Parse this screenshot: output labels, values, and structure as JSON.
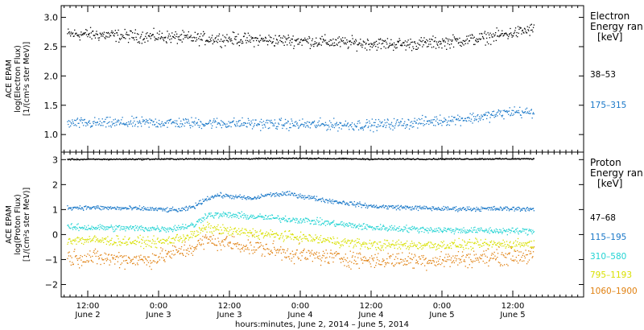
{
  "chart_data": [
    {
      "type": "scatter",
      "panel": "electron",
      "ylabel": [
        "ACE EPAM",
        "log(Electron Flux)",
        "[1/(cm²s ster MeV)]"
      ],
      "ylim": [
        0.7,
        3.2
      ],
      "yticks": [
        1.0,
        1.5,
        2.0,
        2.5,
        3.0
      ],
      "ytick_labels": [
        "1.0",
        "1.5",
        "2.0",
        "2.5",
        "3.0"
      ],
      "legend_title": [
        "Electron",
        "Energy ran",
        "[keV]"
      ],
      "series": [
        {
          "name": "38–53",
          "color": "#000000",
          "base": [
            [
              0,
              2.72
            ],
            [
              6,
              2.69
            ],
            [
              12,
              2.68
            ],
            [
              18,
              2.65
            ],
            [
              24,
              2.64
            ],
            [
              30,
              2.62
            ],
            [
              36,
              2.61
            ],
            [
              42,
              2.58
            ],
            [
              48,
              2.56
            ],
            [
              54,
              2.55
            ],
            [
              60,
              2.58
            ],
            [
              66,
              2.64
            ],
            [
              72,
              2.74
            ],
            [
              75,
              2.8
            ]
          ],
          "scatter": 0.08
        },
        {
          "name": "175–315",
          "color": "#1a78c8",
          "base": [
            [
              0,
              1.2
            ],
            [
              12,
              1.21
            ],
            [
              24,
              1.2
            ],
            [
              36,
              1.18
            ],
            [
              48,
              1.17
            ],
            [
              54,
              1.2
            ],
            [
              60,
              1.25
            ],
            [
              66,
              1.3
            ],
            [
              72,
              1.4
            ],
            [
              75,
              1.38
            ]
          ],
          "scatter": 0.07
        }
      ]
    },
    {
      "type": "scatter",
      "panel": "proton",
      "ylabel": [
        "ACE EPAM",
        "log(Proton Flux)",
        "[1/(cm²s ster MeV)]"
      ],
      "ylim": [
        -2.5,
        3.3
      ],
      "yticks": [
        -2,
        -1,
        0,
        1,
        2,
        3
      ],
      "ytick_labels": [
        "−2",
        "−1",
        "0",
        "1",
        "2",
        "3"
      ],
      "legend_title": [
        "Proton",
        "Energy ran",
        "[keV]"
      ],
      "series": [
        {
          "name": "47–68",
          "color": "#000000",
          "base": [
            [
              0,
              3.03
            ],
            [
              24,
              3.05
            ],
            [
              36,
              3.07
            ],
            [
              48,
              3.04
            ],
            [
              75,
              3.05
            ]
          ],
          "scatter": 0.02
        },
        {
          "name": "115–195",
          "color": "#1a78c8",
          "base": [
            [
              0,
              1.1
            ],
            [
              10,
              1.05
            ],
            [
              14,
              1.0
            ],
            [
              16,
              1.0
            ],
            [
              18,
              1.15
            ],
            [
              20,
              1.45
            ],
            [
              22,
              1.6
            ],
            [
              26,
              1.5
            ],
            [
              28,
              1.45
            ],
            [
              30,
              1.6
            ],
            [
              34,
              1.65
            ],
            [
              40,
              1.4
            ],
            [
              48,
              1.15
            ],
            [
              60,
              1.05
            ],
            [
              75,
              1.05
            ]
          ],
          "scatter": 0.07
        },
        {
          "name": "310–580",
          "color": "#22d3d3",
          "base": [
            [
              0,
              0.3
            ],
            [
              14,
              0.25
            ],
            [
              18,
              0.4
            ],
            [
              20,
              0.8
            ],
            [
              24,
              0.8
            ],
            [
              36,
              0.6
            ],
            [
              48,
              0.3
            ],
            [
              60,
              0.2
            ],
            [
              75,
              0.15
            ]
          ],
          "scatter": 0.1
        },
        {
          "name": "795–1193",
          "color": "#d8e000",
          "base": [
            [
              0,
              -0.2
            ],
            [
              12,
              -0.3
            ],
            [
              18,
              0.0
            ],
            [
              20,
              0.3
            ],
            [
              24,
              0.15
            ],
            [
              36,
              -0.1
            ],
            [
              48,
              -0.4
            ],
            [
              60,
              -0.4
            ],
            [
              75,
              -0.35
            ]
          ],
          "scatter": 0.15
        },
        {
          "name": "1060–1900",
          "color": "#e08010",
          "base": [
            [
              0,
              -0.9
            ],
            [
              10,
              -1.0
            ],
            [
              18,
              -0.5
            ],
            [
              20,
              -0.2
            ],
            [
              26,
              -0.4
            ],
            [
              36,
              -0.8
            ],
            [
              48,
              -1.0
            ],
            [
              60,
              -1.0
            ],
            [
              75,
              -0.8
            ]
          ],
          "scatter": 0.25
        }
      ]
    }
  ],
  "x_axis": {
    "range_hours": [
      -4.5,
      84
    ],
    "ticks": [
      {
        "h": 0,
        "time": "12:00",
        "date": "June 2"
      },
      {
        "h": 12,
        "time": "0:00",
        "date": "June 3"
      },
      {
        "h": 24,
        "time": "12:00",
        "date": "June 3"
      },
      {
        "h": 36,
        "time": "0:00",
        "date": "June 4"
      },
      {
        "h": 48,
        "time": "12:00",
        "date": "June 4"
      },
      {
        "h": 60,
        "time": "0:00",
        "date": "June 5"
      },
      {
        "h": 72,
        "time": "12:00",
        "date": "June 5"
      }
    ],
    "minor_step_hours": 1,
    "title": "hours:minutes, June  2, 2014 – June  5, 2014",
    "data_end_hour": 75.5
  }
}
